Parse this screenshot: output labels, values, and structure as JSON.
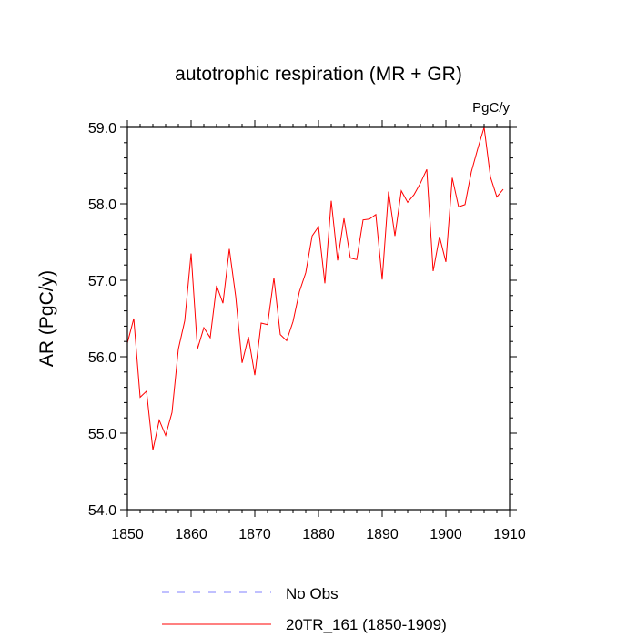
{
  "chart_data": {
    "type": "line",
    "title": "autotrophic respiration (MR + GR)",
    "units": "PgC/y",
    "xlabel": "",
    "ylabel": "AR  (PgC/y)",
    "xlim": [
      1850,
      1910
    ],
    "ylim": [
      54.0,
      59.0
    ],
    "x_ticks": [
      1850,
      1860,
      1870,
      1880,
      1890,
      1900,
      1910
    ],
    "x_tick_labels": [
      "1850",
      "1860",
      "1870",
      "1880",
      "1890",
      "1900",
      "1910"
    ],
    "y_ticks": [
      54.0,
      55.0,
      56.0,
      57.0,
      58.0,
      59.0
    ],
    "y_tick_labels": [
      "54.0",
      "55.0",
      "56.0",
      "57.0",
      "58.0",
      "59.0"
    ],
    "grid": false,
    "legend_position": "bottom",
    "series": [
      {
        "name": "No Obs",
        "color": "#8080ff",
        "style": "dashed",
        "x": [],
        "values": []
      },
      {
        "name": "20TR_161 (1850-1909)",
        "color": "#ff0000",
        "style": "solid",
        "x": [
          1850,
          1851,
          1852,
          1853,
          1854,
          1855,
          1856,
          1857,
          1858,
          1859,
          1860,
          1861,
          1862,
          1863,
          1864,
          1865,
          1866,
          1867,
          1868,
          1869,
          1870,
          1871,
          1872,
          1873,
          1874,
          1875,
          1876,
          1877,
          1878,
          1879,
          1880,
          1881,
          1882,
          1883,
          1884,
          1885,
          1886,
          1887,
          1888,
          1889,
          1890,
          1891,
          1892,
          1893,
          1894,
          1895,
          1896,
          1897,
          1898,
          1899,
          1900,
          1901,
          1902,
          1903,
          1904,
          1905,
          1906,
          1907,
          1908,
          1909
        ],
        "values": [
          56.18,
          56.5,
          55.47,
          55.55,
          54.78,
          55.17,
          54.97,
          55.27,
          56.1,
          56.47,
          57.35,
          56.1,
          56.38,
          56.25,
          56.93,
          56.7,
          57.41,
          56.79,
          55.92,
          56.26,
          55.76,
          56.44,
          56.42,
          57.03,
          56.29,
          56.21,
          56.46,
          56.85,
          57.1,
          57.58,
          57.7,
          56.96,
          58.04,
          57.26,
          57.81,
          57.29,
          57.27,
          57.79,
          57.8,
          57.86,
          57.01,
          58.16,
          57.58,
          58.17,
          58.02,
          58.12,
          58.27,
          58.45,
          57.12,
          57.57,
          57.24,
          58.34,
          57.96,
          57.99,
          58.42,
          58.72,
          59.0,
          58.35,
          58.09,
          58.19
        ]
      }
    ]
  }
}
